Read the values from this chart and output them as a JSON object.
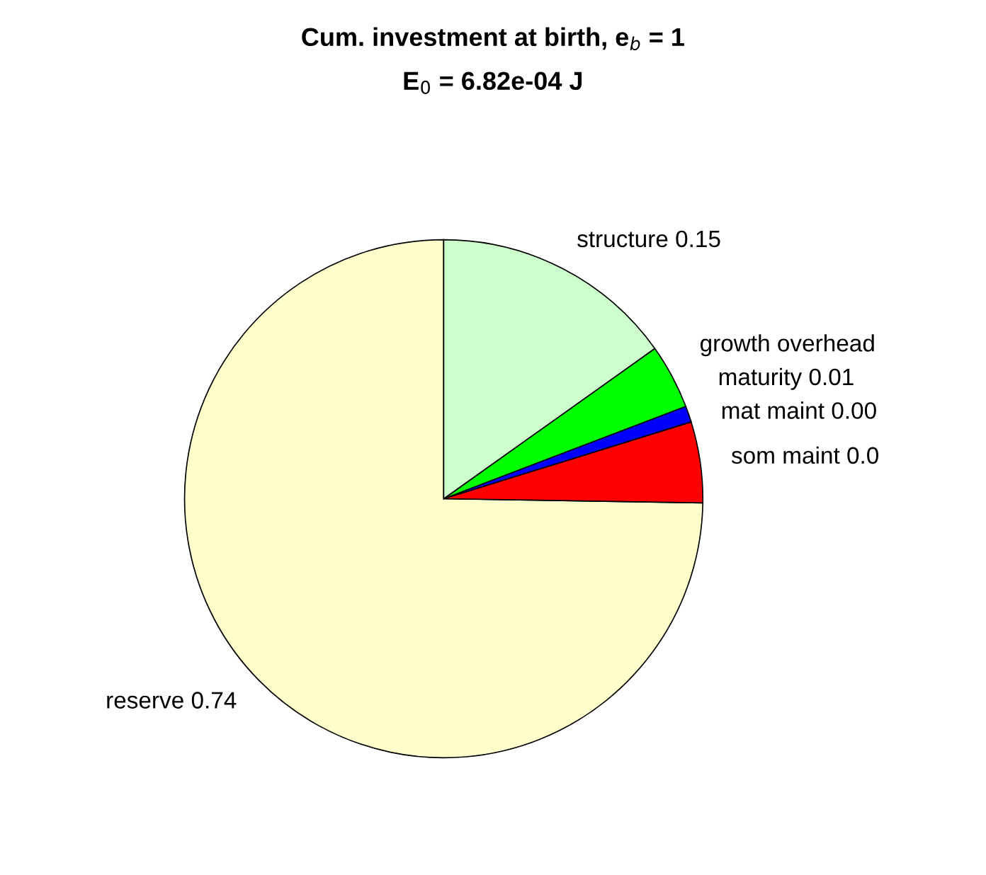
{
  "chart_data": {
    "type": "pie",
    "title": "Cum. investment at birth, e$_{b}$ = 1",
    "subtitle": "E$_{0}$ = 6.82e-04 J",
    "categories": [
      "reserve 0.74",
      "som maint 0.0",
      "mat maint 0.00",
      "maturity 0.01",
      "growth overhead",
      "structure 0.15"
    ],
    "values": [
      0.74,
      0.05,
      0.0,
      0.01,
      0.04,
      0.15
    ],
    "colors": [
      "#ffffcc",
      "#ff0000",
      "#ff00ff",
      "#0000ff",
      "#00ff00",
      "#ccffcc"
    ]
  }
}
